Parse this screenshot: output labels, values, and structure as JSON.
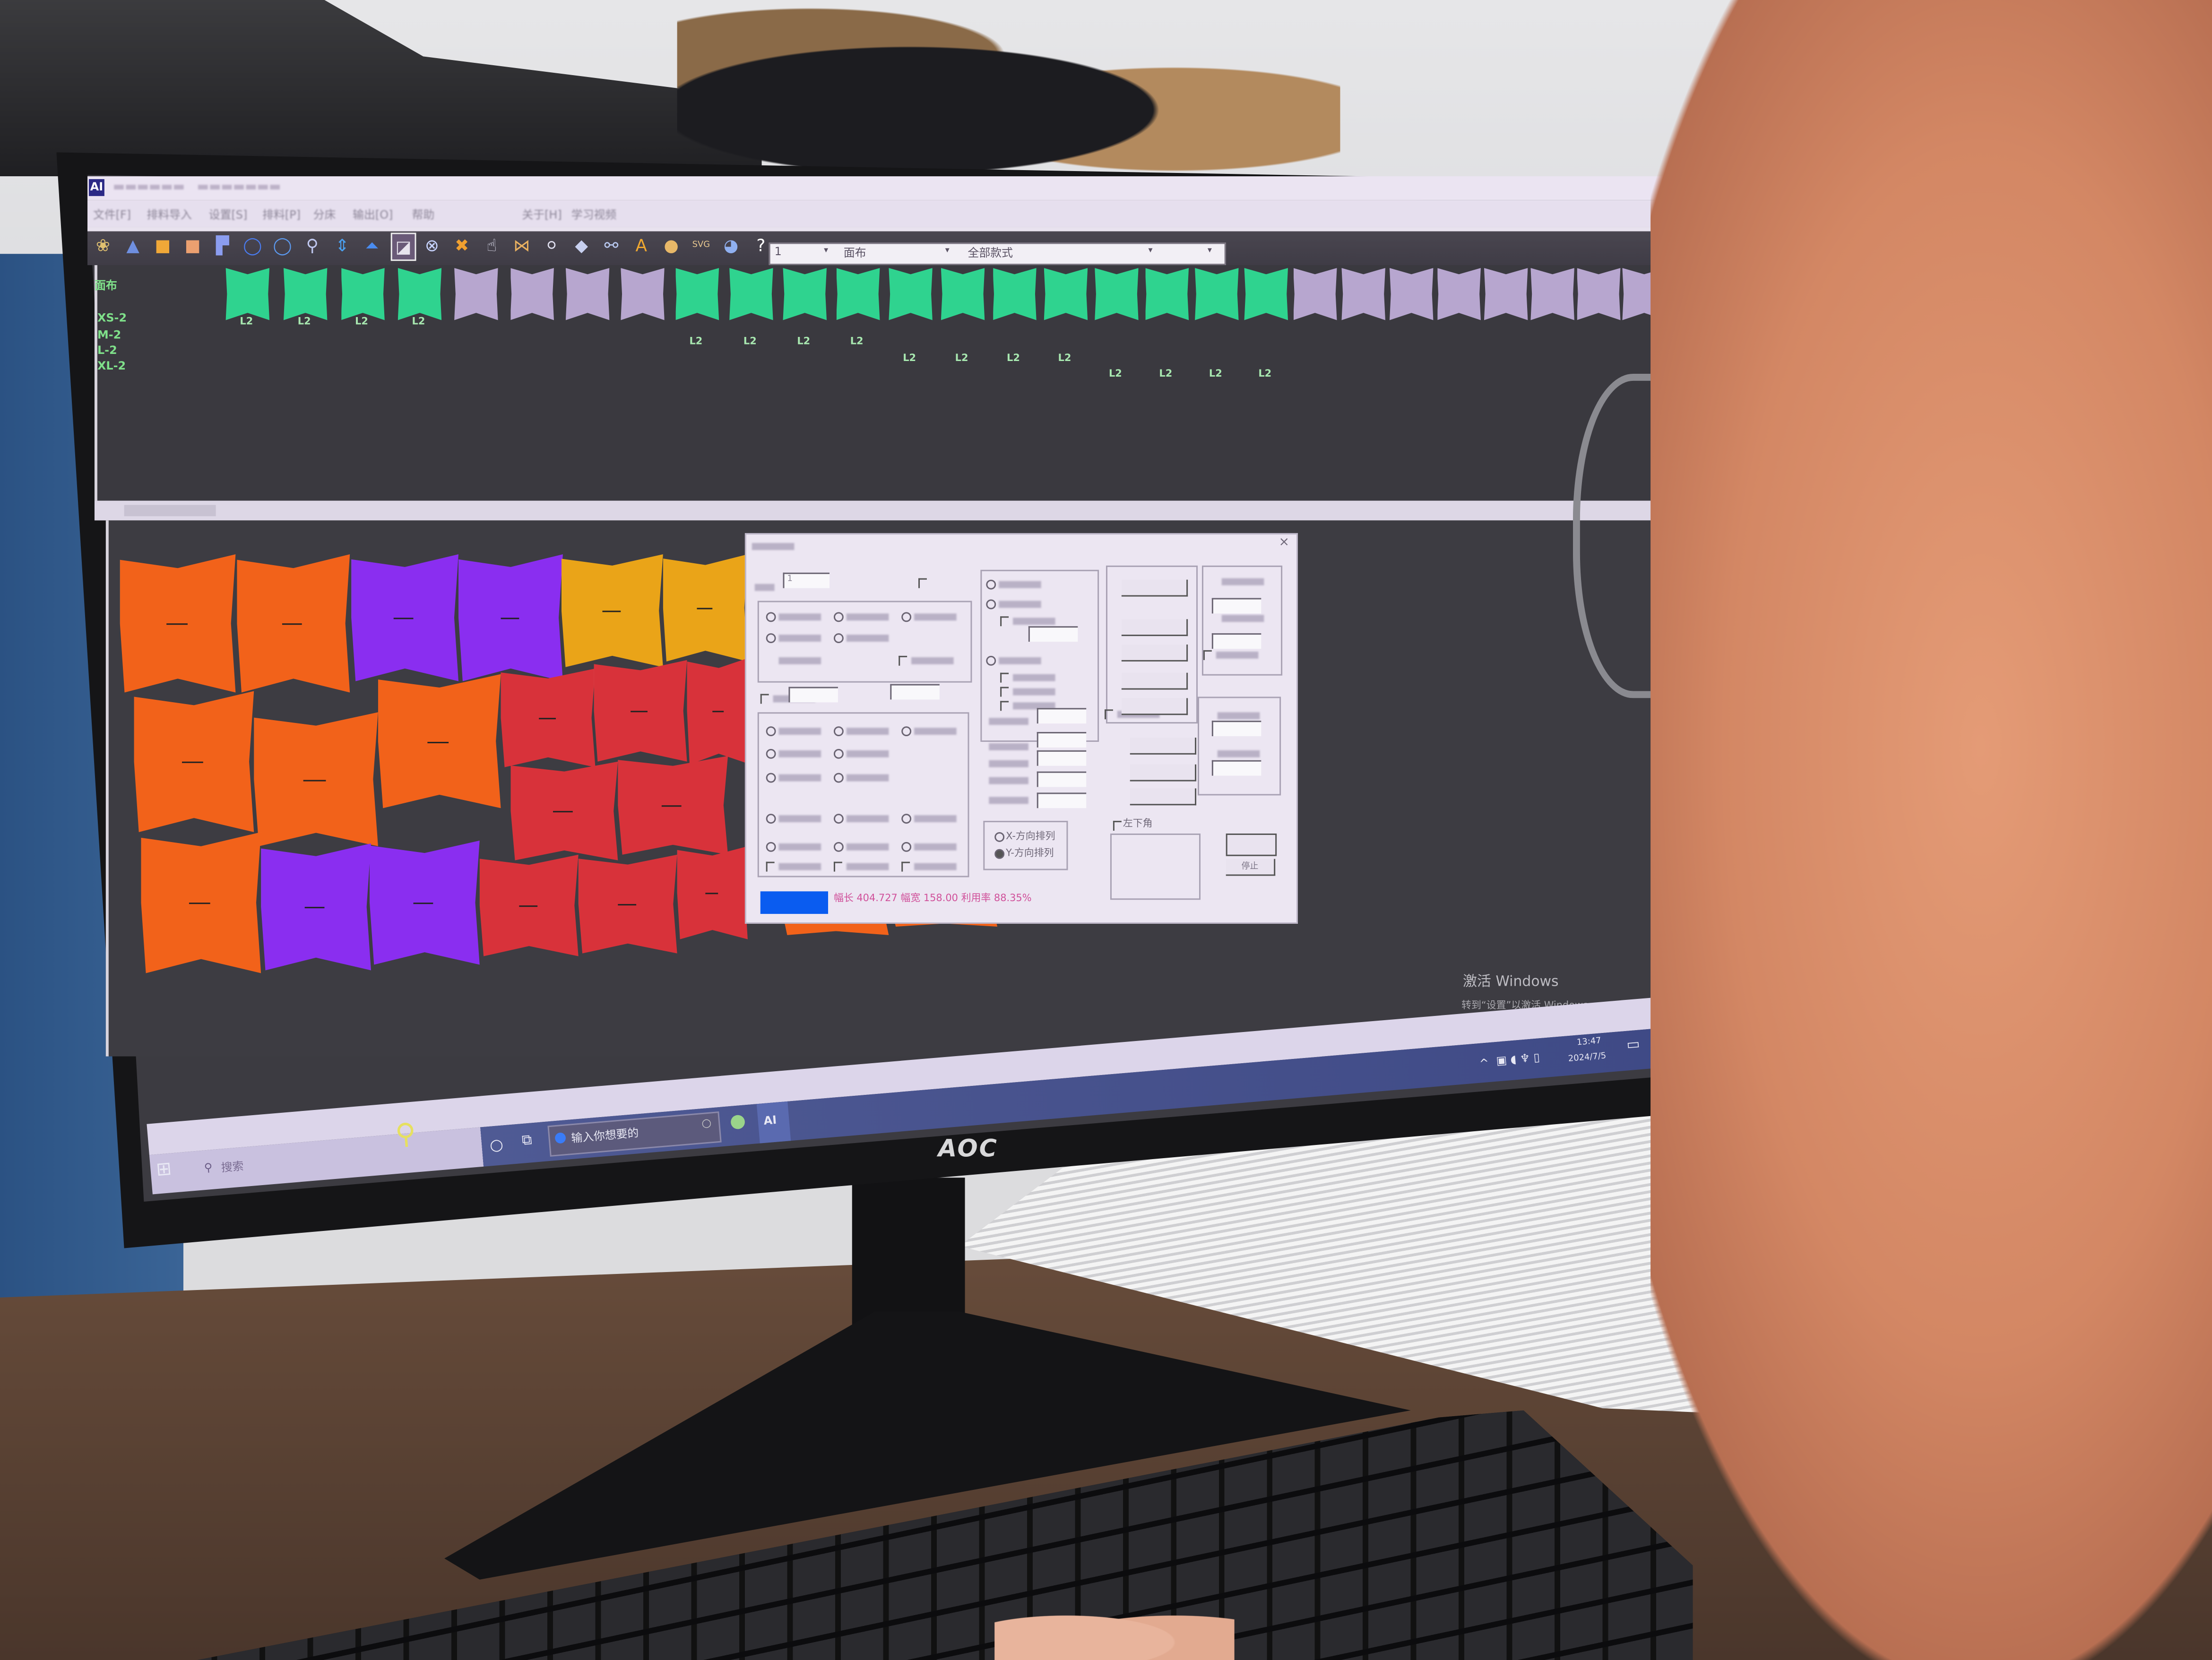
{
  "app": {
    "logo": "AI",
    "menu": [
      "文件[F]",
      "排料导入",
      "设置[S]",
      "排料[P]",
      "分床",
      "输出[O]",
      "帮助",
      "关于[H]",
      "学习视频"
    ],
    "toolbar_icons": [
      {
        "name": "open-icon",
        "glyph": "❀",
        "color": "#e0c070"
      },
      {
        "name": "triangle-icon",
        "glyph": "▲",
        "color": "#6f8fe0"
      },
      {
        "name": "folder-icon",
        "glyph": "■",
        "color": "#f0a838"
      },
      {
        "name": "file-icon",
        "glyph": "■",
        "color": "#eba070"
      },
      {
        "name": "flag-icon",
        "glyph": "▛",
        "color": "#8b9df0"
      },
      {
        "name": "rotate-left-icon",
        "glyph": "◯",
        "color": "#4a7cf0"
      },
      {
        "name": "rotate-right-icon",
        "glyph": "◯",
        "color": "#5c9af0"
      },
      {
        "name": "zoom-icon",
        "glyph": "⚲",
        "color": "#c0c8f0"
      },
      {
        "name": "flip-vertical-icon",
        "glyph": "⇕",
        "color": "#4aa0f0"
      },
      {
        "name": "flip-horizontal-icon",
        "glyph": "⏶",
        "color": "#4a8cf0"
      },
      {
        "name": "select-icon",
        "glyph": "◪",
        "color": "#e8e4ee"
      },
      {
        "name": "center-icon",
        "glyph": "⊗",
        "color": "#c8d4ff"
      },
      {
        "name": "cross-icon",
        "glyph": "✖",
        "color": "#f0a030"
      },
      {
        "name": "hand-icon",
        "glyph": "☝",
        "color": "#d8d8e8"
      },
      {
        "name": "distribute-icon",
        "glyph": "⋈",
        "color": "#e8b060"
      },
      {
        "name": "lasso-icon",
        "glyph": "⚪",
        "color": "#e0e0f0"
      },
      {
        "name": "eraser-icon",
        "glyph": "◆",
        "color": "#c8d0f0"
      },
      {
        "name": "measure-icon",
        "glyph": "⚯",
        "color": "#b8c8f0"
      },
      {
        "name": "text-icon",
        "glyph": "A",
        "color": "#f0a830"
      },
      {
        "name": "coin-icon",
        "glyph": "●",
        "color": "#e8b868"
      },
      {
        "name": "svg-icon",
        "glyph": "SVG",
        "color": "#e8c890"
      },
      {
        "name": "drop-icon",
        "glyph": "◕",
        "color": "#90b0f0"
      },
      {
        "name": "help-icon",
        "glyph": "?",
        "color": "#ffffff"
      }
    ],
    "combos": [
      "1",
      "面布",
      "全部款式"
    ],
    "fabric_label": "面布",
    "size_labels": [
      "XS-2",
      "M-2",
      "L-2",
      "XL-2"
    ],
    "piece_label": "L2",
    "top_pieces": [
      "#2fd38f",
      "#2fd38f",
      "#2fd38f",
      "#2fd38f",
      "#b7a6cf",
      "#b7a6cf",
      "#b7a6cf",
      "#b7a6cf",
      "#2fd38f",
      "#2fd38f",
      "#2fd38f",
      "#2fd38f",
      "#2fd38f",
      "#2fd38f",
      "#2fd38f",
      "#2fd38f",
      "#2fd38f",
      "#2fd38f",
      "#2fd38f",
      "#2fd38f",
      "#b7a6cf",
      "#b7a6cf",
      "#b7a6cf",
      "#b7a6cf",
      "#b7a6cf",
      "#b7a6cf",
      "#b7a6cf",
      "#b7a6cf"
    ],
    "colors": {
      "orange": "#f2621a",
      "purple": "#8a2ef0",
      "yellow": "#eaa418",
      "red": "#d8323a",
      "green": "#2fd38f",
      "accent_blue": "#0a5cf0"
    }
  },
  "dialog": {
    "close": "×",
    "x_direction": "X-方向排列",
    "y_direction": "Y-方向排列",
    "corner_option": "左下角",
    "field_value": "1",
    "status": "幅长 404.727 幅宽 158.00 利用率 88.35%",
    "stop_button": "停止"
  },
  "watermark": {
    "line1": "激活 Windows",
    "line2": "转到“设置”以激活 Windows。"
  },
  "taskbar": {
    "search": "搜索",
    "input_placeholder": "输入你想要的",
    "app_label": "AI",
    "time": "13:47",
    "date": "2024/7/5"
  },
  "monitor": {
    "brand": "AOC"
  }
}
